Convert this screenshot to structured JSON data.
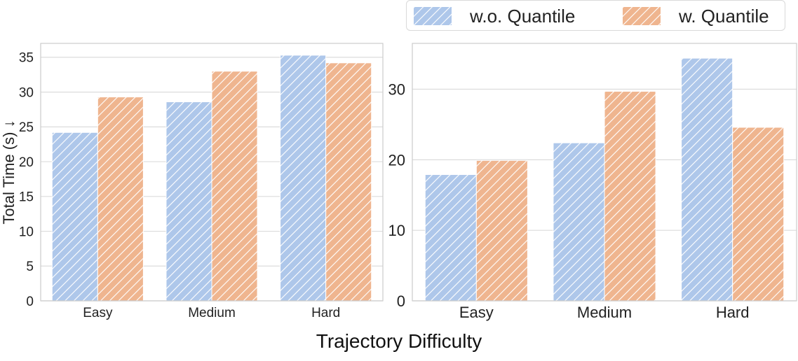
{
  "colors": {
    "w_o_quantile": "#aec7ea",
    "w_quantile": "#efb58f",
    "grid": "#dcdcdc",
    "frame": "#cccccc"
  },
  "legend": {
    "items": [
      "w.o. Quantile",
      "w. Quantile"
    ],
    "placement": "top-right, outside plots"
  },
  "figure": {
    "xlabel": "Trajectory Difficulty"
  },
  "chart_data": [
    {
      "type": "bar",
      "categories": [
        "Easy",
        "Medium",
        "Hard"
      ],
      "series": [
        {
          "name": "w.o. Quantile",
          "values": [
            24.2,
            28.6,
            35.3
          ]
        },
        {
          "name": "w. Quantile",
          "values": [
            29.3,
            33.0,
            34.2
          ]
        }
      ],
      "ylabel": "Total Time (s) ↓",
      "ylim": [
        0,
        37
      ],
      "yticks": [
        0,
        5,
        10,
        15,
        20,
        25,
        30,
        35
      ],
      "grid": true,
      "hatch": "diagonal"
    },
    {
      "type": "bar",
      "categories": [
        "Easy",
        "Medium",
        "Hard"
      ],
      "series": [
        {
          "name": "w.o. Quantile",
          "values": [
            17.9,
            22.4,
            34.4
          ]
        },
        {
          "name": "w. Quantile",
          "values": [
            19.9,
            29.7,
            24.6
          ]
        }
      ],
      "ylabel": "",
      "ylim": [
        0,
        36.5
      ],
      "yticks": [
        0,
        10,
        20,
        30
      ],
      "grid": true,
      "hatch": "diagonal"
    }
  ]
}
